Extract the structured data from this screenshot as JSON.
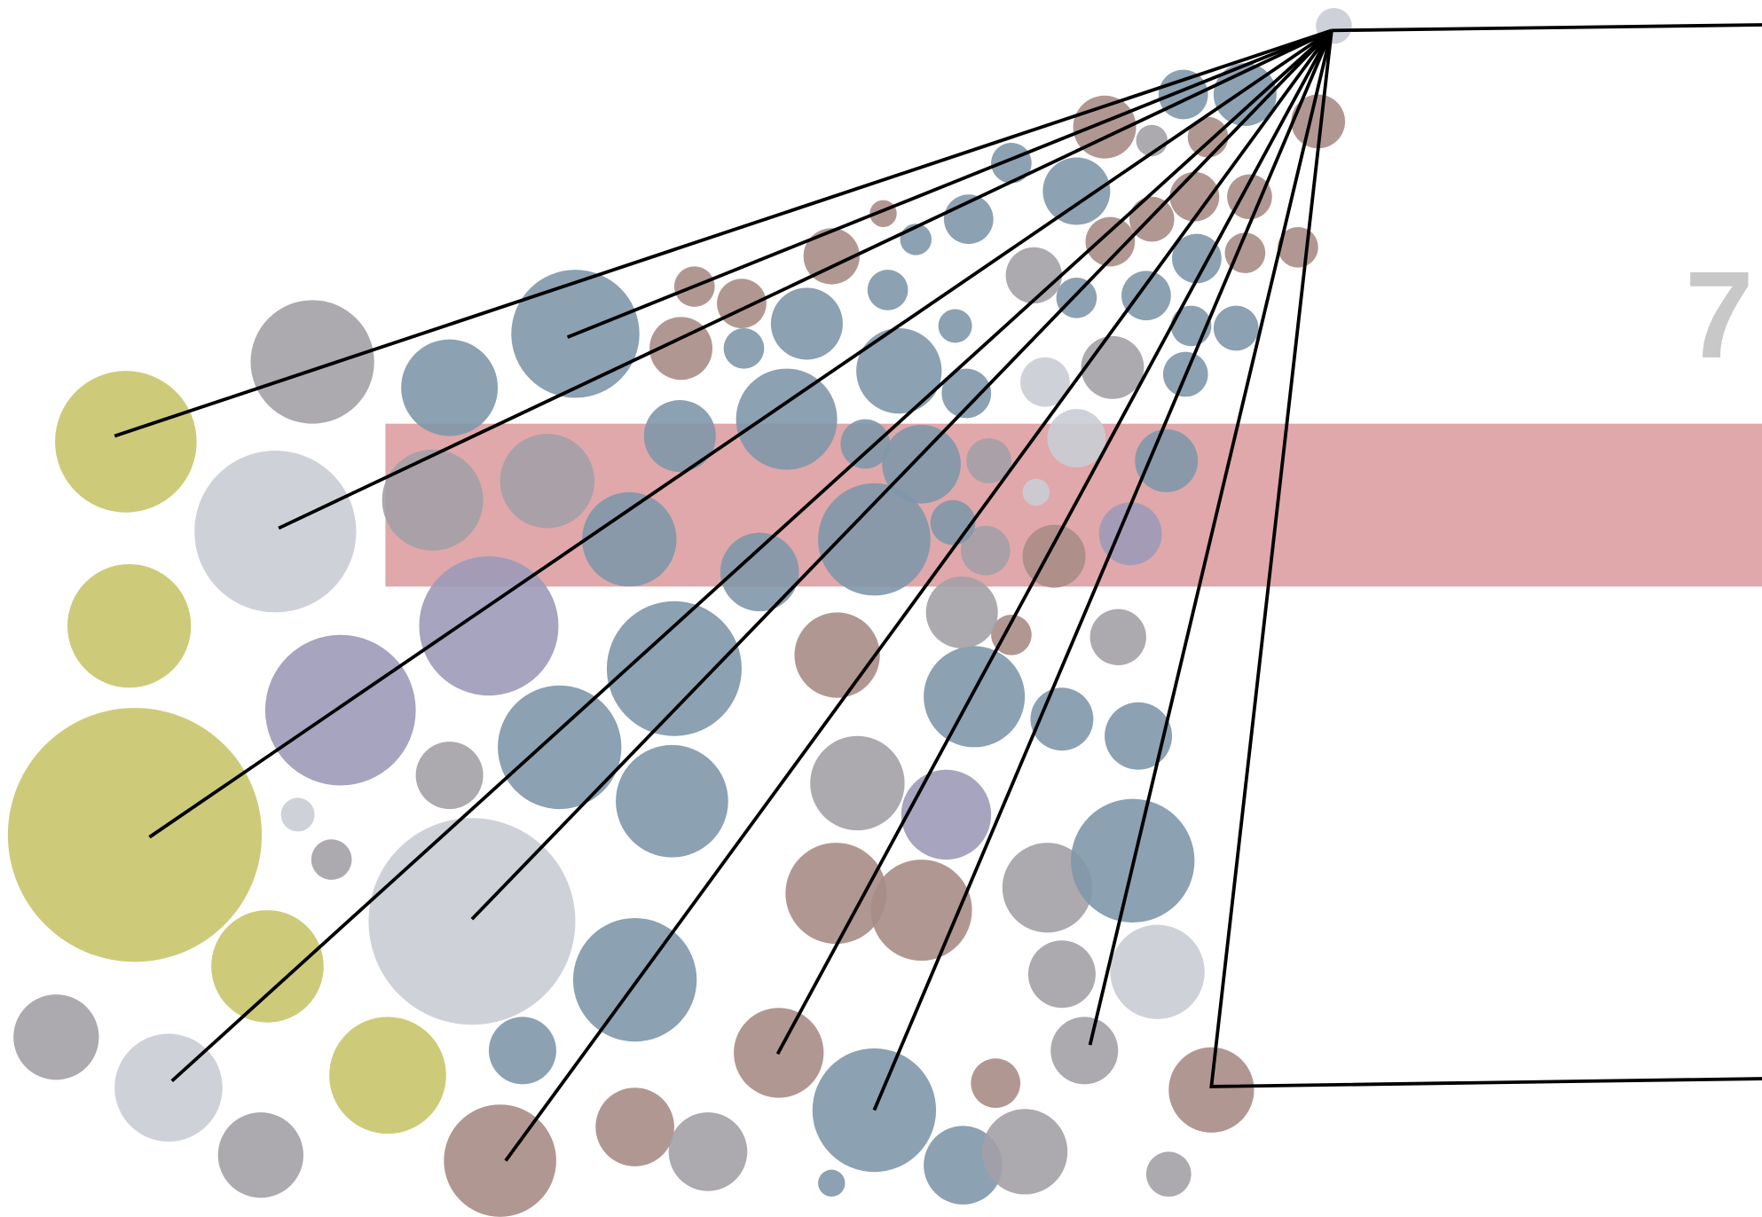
{
  "label": "7"
}
